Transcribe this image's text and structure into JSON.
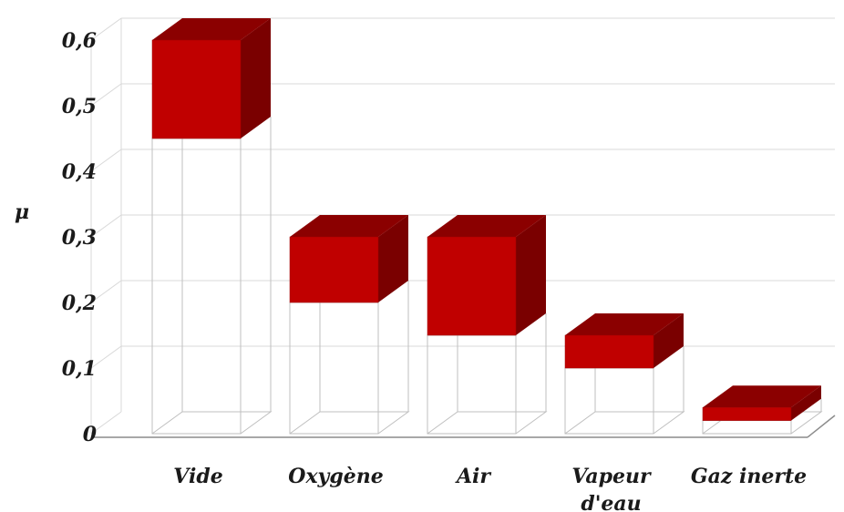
{
  "chart_data": {
    "type": "bar",
    "title": "",
    "xlabel": "",
    "ylabel": "μ",
    "ylim": [
      0,
      0.6
    ],
    "yticks": [
      "0",
      "0,1",
      "0,2",
      "0,3",
      "0,4",
      "0,5",
      "0,6"
    ],
    "grid": true,
    "categories": [
      {
        "label_lines": [
          "Vide"
        ]
      },
      {
        "label_lines": [
          "Oxygène"
        ]
      },
      {
        "label_lines": [
          "Air"
        ]
      },
      {
        "label_lines": [
          "Vapeur",
          "d'eau"
        ]
      },
      {
        "label_lines": [
          "Gaz inerte"
        ]
      }
    ],
    "series": [
      {
        "kind": "range",
        "low": [
          0.45,
          0.2,
          0.15,
          0.1,
          0.02
        ],
        "high": [
          0.6,
          0.3,
          0.3,
          0.15,
          0.04
        ]
      }
    ],
    "colors": {
      "front": "#c00000",
      "top": "#8b0000",
      "side": "#7a0000",
      "outline": "#bfbfbf",
      "grid": "#d9d9d9"
    }
  }
}
